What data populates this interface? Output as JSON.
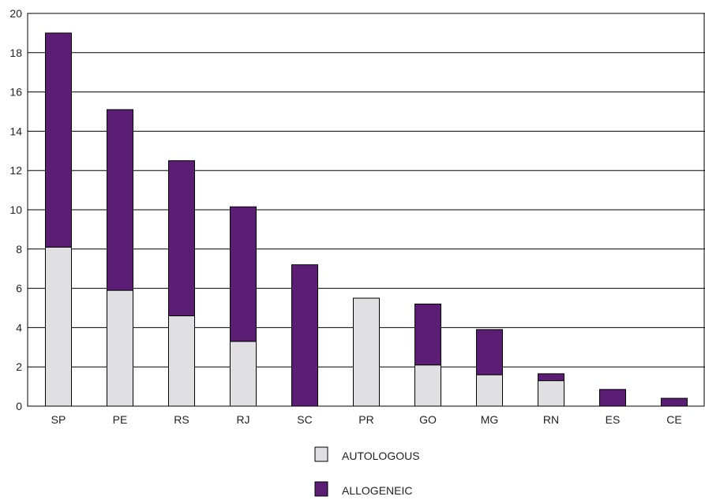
{
  "chart_data": {
    "type": "bar",
    "stacked": true,
    "title": "",
    "xlabel": "",
    "ylabel": "",
    "categories": [
      "SP",
      "PE",
      "RS",
      "RJ",
      "SC",
      "PR",
      "GO",
      "MG",
      "RN",
      "ES",
      "CE"
    ],
    "series": [
      {
        "name": "AUTOLOGOUS",
        "color": "#e0e0e2",
        "values": [
          8.1,
          5.9,
          4.6,
          3.3,
          0,
          5.5,
          2.1,
          1.6,
          1.3,
          0,
          0
        ]
      },
      {
        "name": "ALLOGENEIC",
        "color": "#5c1d74",
        "values": [
          10.9,
          9.2,
          7.9,
          6.85,
          7.2,
          0,
          3.1,
          2.3,
          0.35,
          0.85,
          0.4
        ]
      }
    ],
    "ylim": [
      0,
      20
    ],
    "yticks": [
      0,
      2,
      4,
      6,
      8,
      10,
      12,
      14,
      16,
      18,
      20
    ],
    "grid": true,
    "legend_position": "bottom"
  }
}
